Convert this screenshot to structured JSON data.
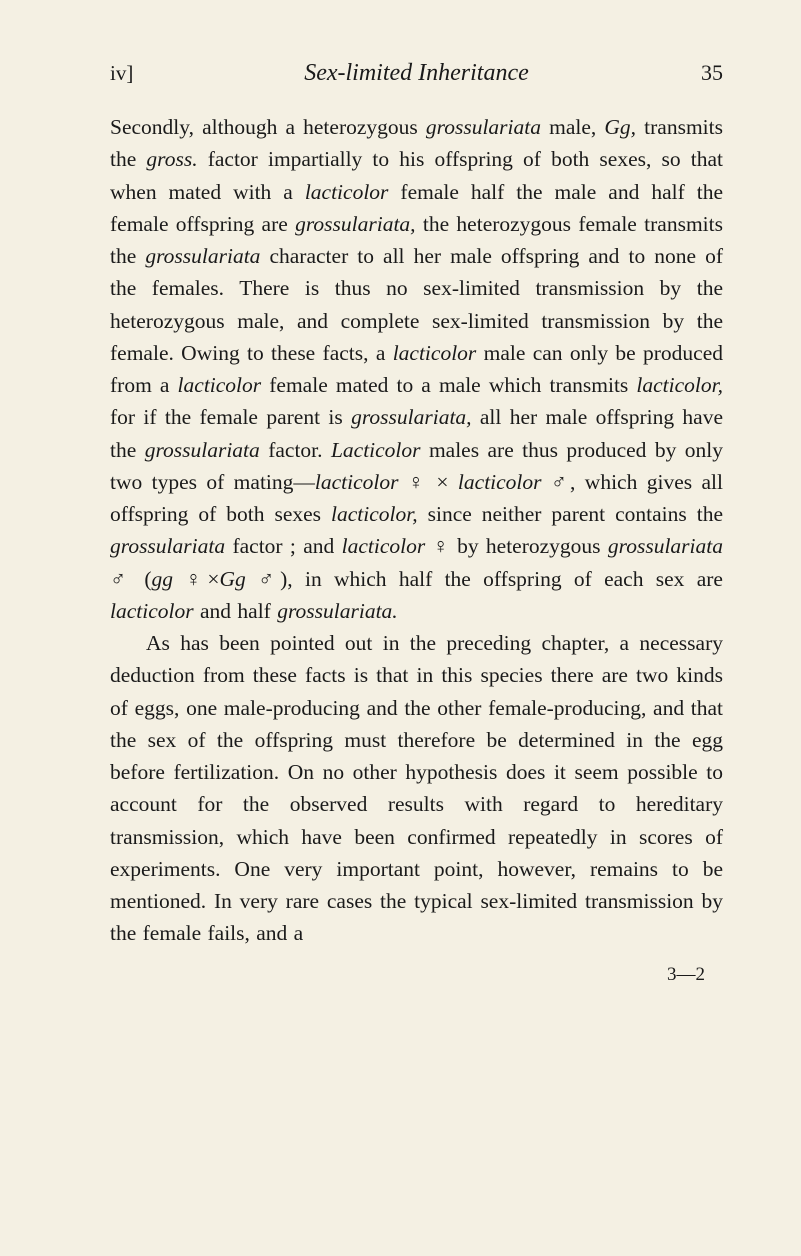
{
  "page": {
    "section_numeral": "iv]",
    "running_title": "Sex-limited Inheritance",
    "page_number": "35",
    "footer_sig": "3—2",
    "background_color": "#f4f0e3",
    "text_color": "#1a1a1a",
    "font_family": "Georgia, 'Times New Roman', serif",
    "body_fontsize": 21.5,
    "header_title_fontsize": 24,
    "page_number_fontsize": 22
  },
  "para1": {
    "t0": "Secondly, although a heterozygous ",
    "i0": "grossulariata",
    "t1": " male, ",
    "i1": "Gg,",
    "t2": " transmits the ",
    "i2": "gross.",
    "t3": " factor impartially to his offspring of both sexes, so that when mated with a ",
    "i3": "lacticolor",
    "t4": " female half the male and half the female offspring are ",
    "i4": "grossulariata,",
    "t5": " the heterozygous female transmits the ",
    "i5": "grossulariata",
    "t6": " character to all her male offspring and to none of the females. There is thus no sex-limited transmission by the heterozygous male, and complete sex-limited transmission by the female. Owing to these facts, a ",
    "i6": "lacticolor",
    "t7": " male can only be produced from a ",
    "i7": "lacticolor",
    "t8": " female mated to a male which transmits ",
    "i8": "lacticolor,",
    "t9": " for if the female parent is ",
    "i9": "grossulariata,",
    "t10": " all her male offspring have the ",
    "i10": "grossu­lariata",
    "t11": " factor. ",
    "i11": "Lacticolor",
    "t12": " males are thus produced by only two types of mating—",
    "i12": "lacticolor",
    "t13": " ♀ × ",
    "i13": "lacticolor",
    "t14": " ♂, which gives all offspring of both sexes ",
    "i14": "lacticolor,",
    "t15": " since neither parent contains the ",
    "i15": "grossulariata",
    "t16": " factor ; and ",
    "i16": "lacticolor",
    "t17": " ♀ by heterozygous ",
    "i17": "grossulariata",
    "t18": " ♂ (",
    "i18": "gg",
    "t19": " ♀×",
    "i19": "Gg",
    "t20": " ♂), in which half the offspring of each sex are ",
    "i20": "lacticolor",
    "t21": " and half ",
    "i21": "grossulariata."
  },
  "para2": {
    "t0": "As has been pointed out in the preceding chapter, a necessary deduction from these facts is that in this species there are two kinds of eggs, one male-pro­ducing and the other female-producing, and that the sex of the offspring must therefore be determined in the egg before fertilization. On no other hypothesis does it seem possible to account for the observed results with regard to hereditary transmission, which have been confirmed repeatedly in scores of experi­ments. One very important point, however, remains to be mentioned. In very rare cases the typical sex-limited transmission by the female fails, and a"
  }
}
